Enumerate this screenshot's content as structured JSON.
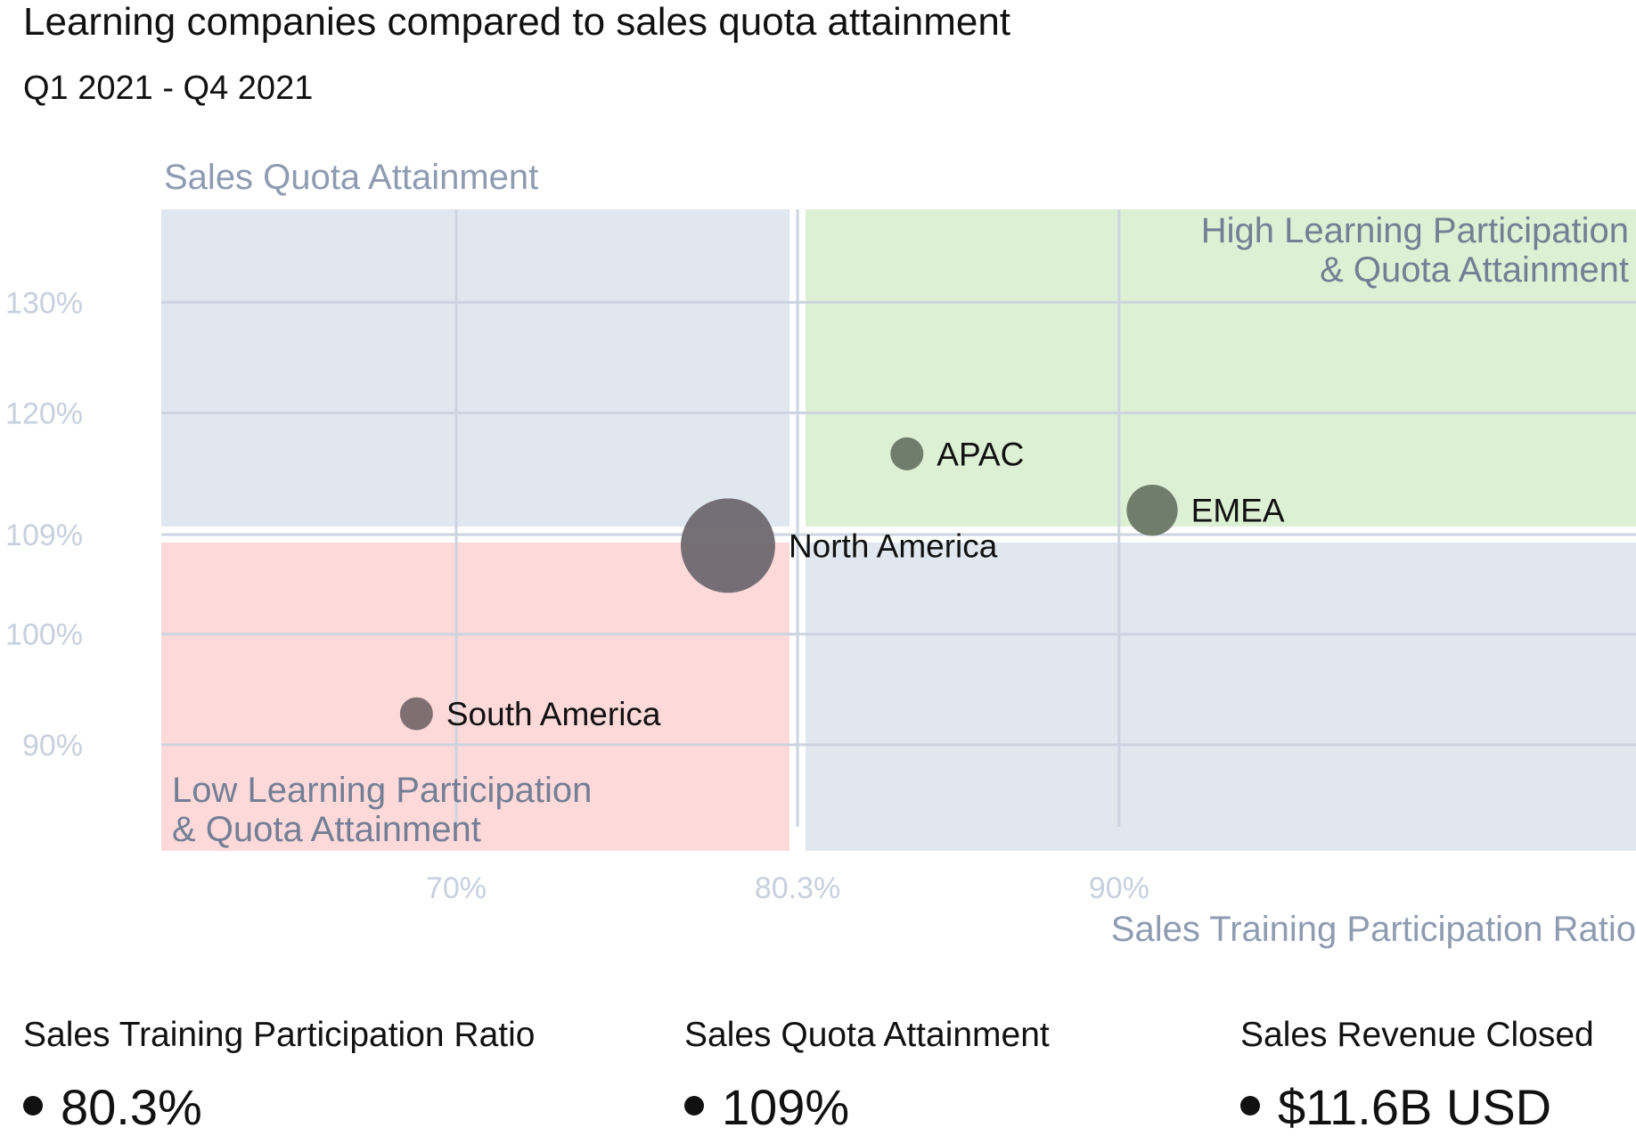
{
  "title": "Learning companies compared to sales quota attainment",
  "subtitle": "Q1 2021 - Q4 2021",
  "chart_data": {
    "type": "scatter",
    "x_axis_label": "Sales Training Participation Ratio",
    "y_axis_label": "Sales Quota Attainment",
    "x_ticks": [
      {
        "value": 70,
        "label": "70%"
      },
      {
        "value": 80.3,
        "label": "80.3%"
      },
      {
        "value": 90,
        "label": "90%"
      }
    ],
    "y_ticks": [
      {
        "value": 130,
        "label": "130%"
      },
      {
        "value": 120,
        "label": "120%"
      },
      {
        "value": 109,
        "label": "109%"
      },
      {
        "value": 100,
        "label": "100%"
      },
      {
        "value": 90,
        "label": "90%"
      }
    ],
    "xlim": [
      61.1,
      105.6
    ],
    "ylim": [
      80.4,
      138.4
    ],
    "grid": true,
    "quadrants": [
      {
        "name": "top-left",
        "x_range": [
          61.1,
          80.3
        ],
        "y_range": [
          109,
          138.4
        ],
        "color": "#e1e7ef",
        "label": []
      },
      {
        "name": "top-right",
        "x_range": [
          80.3,
          105.6
        ],
        "y_range": [
          109,
          138.4
        ],
        "color": "#dcf0d3",
        "label": [
          "High Learning Participation",
          "& Quota Attainment"
        ]
      },
      {
        "name": "bottom-left",
        "x_range": [
          61.1,
          80.3
        ],
        "y_range": [
          80.4,
          109
        ],
        "color": "#fdd9d9",
        "label": [
          "Low Learning Participation",
          "& Quota Attainment"
        ]
      },
      {
        "name": "bottom-right",
        "x_range": [
          80.3,
          105.6
        ],
        "y_range": [
          80.4,
          109
        ],
        "color": "#e1e7ef",
        "label": []
      }
    ],
    "points": [
      {
        "name": "APAC",
        "x": 83.6,
        "y": 116.3,
        "size": 1,
        "color": "#6b7866"
      },
      {
        "name": "EMEA",
        "x": 91,
        "y": 111.2,
        "size": 2.4,
        "color": "#6b7866"
      },
      {
        "name": "North America",
        "x": 78.2,
        "y": 108,
        "size": 8.2,
        "color": "#6f6a70"
      },
      {
        "name": "South America",
        "x": 68.8,
        "y": 92.8,
        "size": 1,
        "color": "#7a6a6d"
      }
    ]
  },
  "stats": [
    {
      "label": "Sales Training Participation Ratio",
      "value": "80.3%"
    },
    {
      "label": "Sales Quota Attainment",
      "value": "109%"
    },
    {
      "label": "Sales Revenue Closed",
      "value": "$11.6B USD"
    }
  ]
}
